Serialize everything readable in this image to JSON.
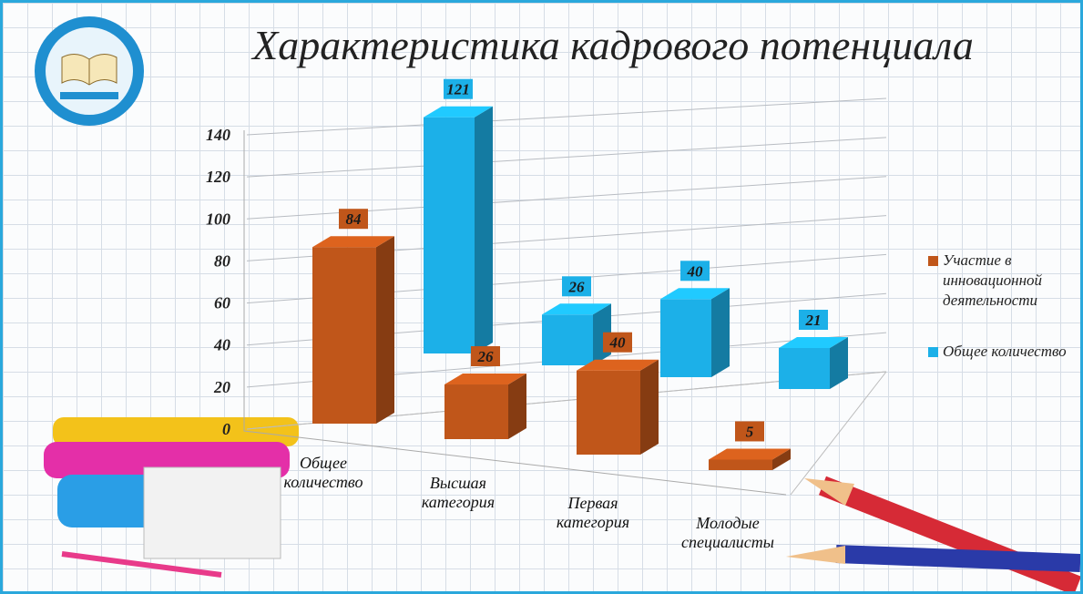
{
  "chart_data": {
    "type": "bar3d",
    "title": "Характеристика кадрового потенциала",
    "categories": [
      "Общее количество",
      "Высшая категория",
      "Первая категория",
      "Молодые специалисты"
    ],
    "series": [
      {
        "name": "Участие в инновационной деятельности",
        "color": "#c0561a",
        "values": [
          84,
          26,
          40,
          5
        ]
      },
      {
        "name": "Общее количество",
        "color": "#1cb0e8",
        "values": [
          121,
          26,
          40,
          21
        ]
      }
    ],
    "ylim": [
      0,
      140
    ],
    "yticks": [
      0,
      20,
      40,
      60,
      80,
      100,
      120,
      140
    ],
    "grid": true
  }
}
